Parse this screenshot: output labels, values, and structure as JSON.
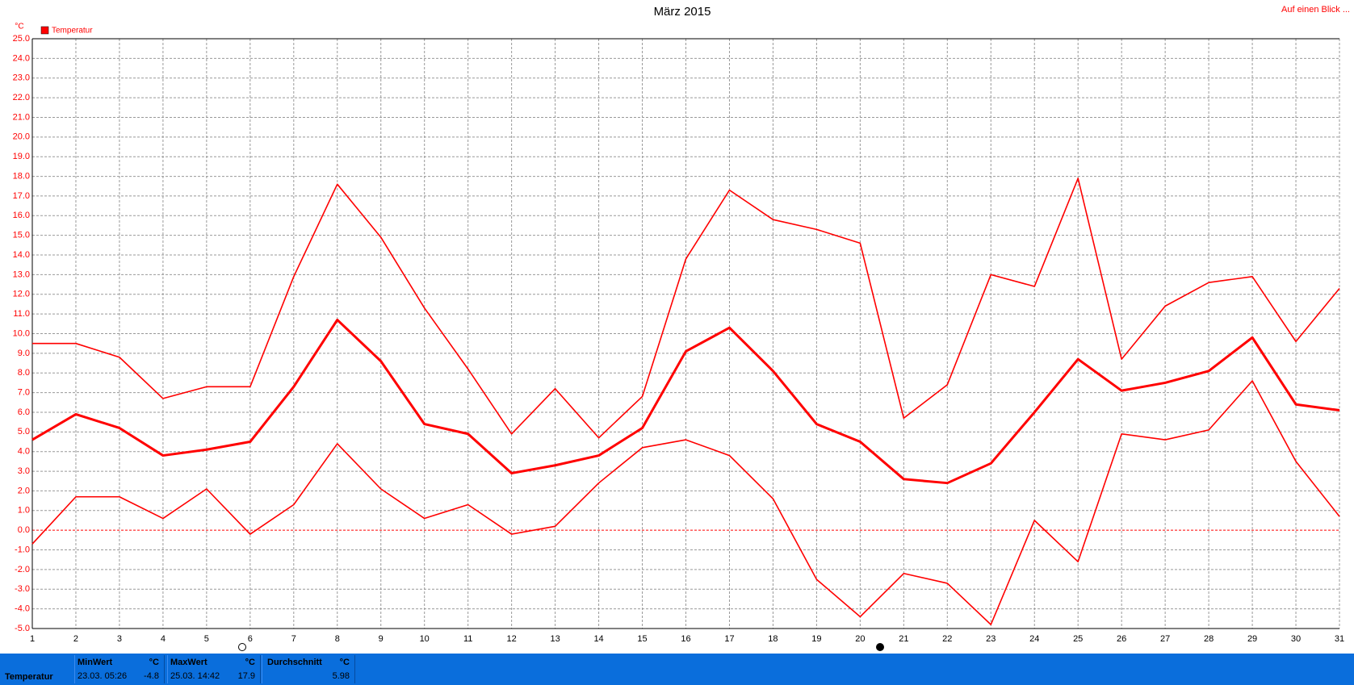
{
  "chart_data": {
    "type": "line",
    "title": "März 2015",
    "y_unit": "°C",
    "legend": "Temperatur",
    "link": "Auf einen Blick ...",
    "x": [
      1,
      2,
      3,
      4,
      5,
      6,
      7,
      8,
      9,
      10,
      11,
      12,
      13,
      14,
      15,
      16,
      17,
      18,
      19,
      20,
      21,
      22,
      23,
      24,
      25,
      26,
      27,
      28,
      29,
      30,
      31
    ],
    "xlim": [
      1,
      31
    ],
    "xticks": [
      1,
      2,
      3,
      4,
      5,
      6,
      7,
      8,
      9,
      10,
      11,
      12,
      13,
      14,
      15,
      16,
      17,
      18,
      19,
      20,
      21,
      22,
      23,
      24,
      25,
      26,
      27,
      28,
      29,
      30,
      31
    ],
    "ylim": [
      -5,
      25
    ],
    "yticks": [
      {
        "value": -5,
        "label": "-5.0"
      },
      {
        "value": -4,
        "label": "-4.0"
      },
      {
        "value": -3,
        "label": "-3.0"
      },
      {
        "value": -2,
        "label": "-2.0"
      },
      {
        "value": -1,
        "label": "-1.0"
      },
      {
        "value": 0,
        "label": "0.0"
      },
      {
        "value": 1,
        "label": "1.0"
      },
      {
        "value": 2,
        "label": "2.0"
      },
      {
        "value": 3,
        "label": "3.0"
      },
      {
        "value": 4,
        "label": "4.0"
      },
      {
        "value": 5,
        "label": "5.0"
      },
      {
        "value": 6,
        "label": "6.0"
      },
      {
        "value": 7,
        "label": "7.0"
      },
      {
        "value": 8,
        "label": "8.0"
      },
      {
        "value": 9,
        "label": "9.0"
      },
      {
        "value": 10,
        "label": "10.0"
      },
      {
        "value": 11,
        "label": "11.0"
      },
      {
        "value": 12,
        "label": "12.0"
      },
      {
        "value": 13,
        "label": "13.0"
      },
      {
        "value": 14,
        "label": "14.0"
      },
      {
        "value": 15,
        "label": "15.0"
      },
      {
        "value": 16,
        "label": "16.0"
      },
      {
        "value": 17,
        "label": "17.0"
      },
      {
        "value": 18,
        "label": "18.0"
      },
      {
        "value": 19,
        "label": "19.0"
      },
      {
        "value": 20,
        "label": "20.0"
      },
      {
        "value": 21,
        "label": "21.0"
      },
      {
        "value": 22,
        "label": "22.0"
      },
      {
        "value": 23,
        "label": "23.0"
      },
      {
        "value": 24,
        "label": "24.0"
      },
      {
        "value": 25,
        "label": "25.0"
      }
    ],
    "grid": true,
    "color": "#ff0000",
    "series": [
      {
        "color": "#ff0000",
        "values": [
          9.5,
          9.5,
          8.8,
          6.7,
          7.3,
          7.3,
          12.9,
          17.6,
          14.9,
          11.3,
          8.2,
          4.9,
          7.2,
          4.7,
          6.8,
          13.8,
          17.3,
          15.8,
          15.3,
          14.6,
          5.7,
          7.4,
          13.0,
          12.4,
          17.9,
          8.7,
          11.4,
          12.6,
          12.9,
          9.6,
          12.3
        ]
      },
      {
        "color": "#ff0000",
        "values": [
          4.6,
          5.9,
          5.2,
          3.8,
          4.1,
          4.5,
          7.3,
          10.7,
          8.6,
          5.4,
          4.9,
          2.9,
          3.3,
          3.8,
          5.2,
          9.1,
          10.3,
          8.1,
          5.4,
          4.5,
          2.6,
          2.4,
          3.4,
          6.0,
          8.7,
          7.1,
          7.5,
          8.1,
          9.8,
          6.4,
          6.1
        ]
      },
      {
        "color": "#ff0000",
        "values": [
          -0.7,
          1.7,
          1.7,
          0.6,
          2.1,
          -0.2,
          1.3,
          4.4,
          2.1,
          0.6,
          1.3,
          -0.2,
          0.2,
          2.4,
          4.2,
          4.6,
          3.8,
          1.6,
          -2.5,
          -4.4,
          -2.2,
          -2.7,
          -4.8,
          0.5,
          -1.6,
          4.9,
          4.6,
          5.1,
          7.6,
          3.5,
          0.7
        ]
      }
    ]
  },
  "summary": {
    "label": "Temperatur",
    "min": {
      "title": "MinWert",
      "unit": "°C",
      "time": "23.03.  05:26",
      "value": -4.8
    },
    "max": {
      "title": "MaxWert",
      "unit": "°C",
      "time": "25.03.  14:42",
      "value": 17.9
    },
    "avg": {
      "title": "Durchschnitt",
      "unit": "°C",
      "value": 5.98
    }
  }
}
